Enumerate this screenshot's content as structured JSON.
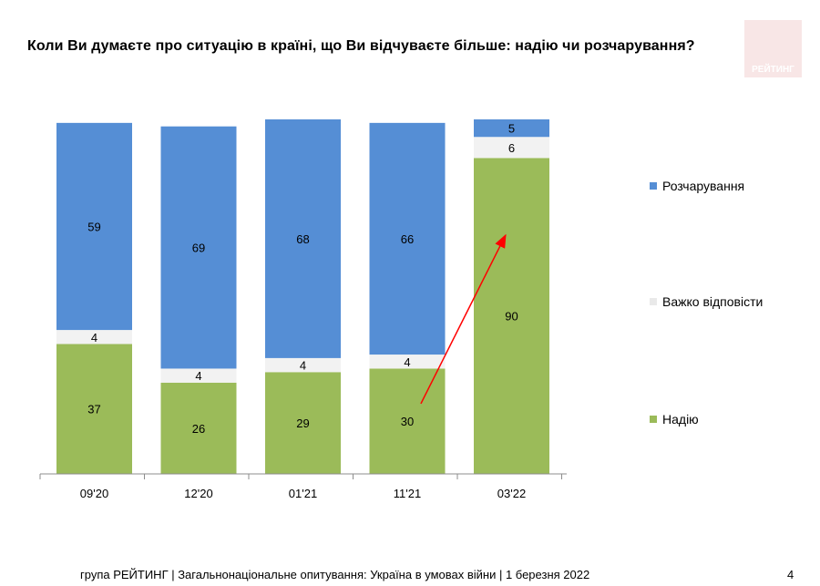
{
  "title": "Коли Ви думаєте про ситуацію в країні, що Ви відчуваєте більше: надію чи розчарування?",
  "logo": {
    "text": "РЕЙТИНГ",
    "color": "#f8e6e6"
  },
  "footer": "група РЕЙТИНГ | Загальнонаціональне опитування: Україна в умовах війни | 1 березня 2022",
  "page_number": "4",
  "chart_data": {
    "type": "bar",
    "stacked": true,
    "categories": [
      "09'20",
      "12'20",
      "01'21",
      "11'21",
      "03'22"
    ],
    "series": [
      {
        "name": "Надію",
        "color": "#9bbb59",
        "values": [
          37,
          26,
          29,
          30,
          90
        ]
      },
      {
        "name": "Важко відповісти",
        "color": "#f2f2f2",
        "values": [
          4,
          4,
          4,
          4,
          6
        ]
      },
      {
        "name": "Розчарування",
        "color": "#558ed5",
        "values": [
          59,
          69,
          68,
          66,
          5
        ]
      }
    ],
    "legend_order": [
      "Розчарування",
      "Важко відповісти",
      "Надію"
    ],
    "legend_position": "right",
    "ylim": [
      0,
      101
    ],
    "grid": false,
    "annotation": {
      "type": "arrow",
      "color": "#ff0000",
      "from": {
        "category": "11'21",
        "value": 20
      },
      "to": {
        "category": "03'22",
        "value": 68
      }
    }
  }
}
